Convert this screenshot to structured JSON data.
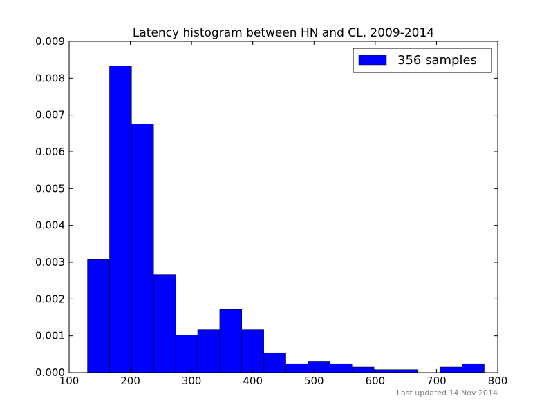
{
  "chart_data": {
    "type": "bar",
    "title": "Latency histogram between HN and CL, 2009-2014",
    "xlabel": "",
    "ylabel": "",
    "xlim": [
      100,
      800
    ],
    "ylim": [
      0,
      0.009
    ],
    "x_ticks": [
      100,
      200,
      300,
      400,
      500,
      600,
      700,
      800
    ],
    "y_ticks": [
      0.0,
      0.001,
      0.002,
      0.003,
      0.004,
      0.005,
      0.006,
      0.007,
      0.008,
      0.009
    ],
    "x_tick_labels": [
      "100",
      "200",
      "300",
      "400",
      "500",
      "600",
      "700",
      "800"
    ],
    "y_tick_labels": [
      "0.000",
      "0.001",
      "0.002",
      "0.003",
      "0.004",
      "0.005",
      "0.006",
      "0.007",
      "0.008",
      "0.009"
    ],
    "grid": false,
    "legend_position": "top-right",
    "series": [
      {
        "name": "356 samples",
        "color": "#0000ff",
        "bins": [
          {
            "x0": 130,
            "x1": 166,
            "value": 0.00307
          },
          {
            "x0": 166,
            "x1": 202,
            "value": 0.00833
          },
          {
            "x0": 202,
            "x1": 238,
            "value": 0.00676
          },
          {
            "x0": 238,
            "x1": 274,
            "value": 0.00267
          },
          {
            "x0": 274,
            "x1": 310,
            "value": 0.00102
          },
          {
            "x0": 310,
            "x1": 346,
            "value": 0.00117
          },
          {
            "x0": 346,
            "x1": 382,
            "value": 0.00172
          },
          {
            "x0": 382,
            "x1": 418,
            "value": 0.00117
          },
          {
            "x0": 418,
            "x1": 454,
            "value": 0.00054
          },
          {
            "x0": 454,
            "x1": 490,
            "value": 0.00024
          },
          {
            "x0": 490,
            "x1": 526,
            "value": 0.00031
          },
          {
            "x0": 526,
            "x1": 562,
            "value": 0.00024
          },
          {
            "x0": 562,
            "x1": 598,
            "value": 0.00015
          },
          {
            "x0": 598,
            "x1": 634,
            "value": 8e-05
          },
          {
            "x0": 634,
            "x1": 670,
            "value": 8e-05
          },
          {
            "x0": 670,
            "x1": 706,
            "value": 0
          },
          {
            "x0": 706,
            "x1": 742,
            "value": 0.00015
          },
          {
            "x0": 742,
            "x1": 778,
            "value": 0.00024
          }
        ]
      }
    ]
  },
  "footnote": "Last updated 14 Nov 2014"
}
